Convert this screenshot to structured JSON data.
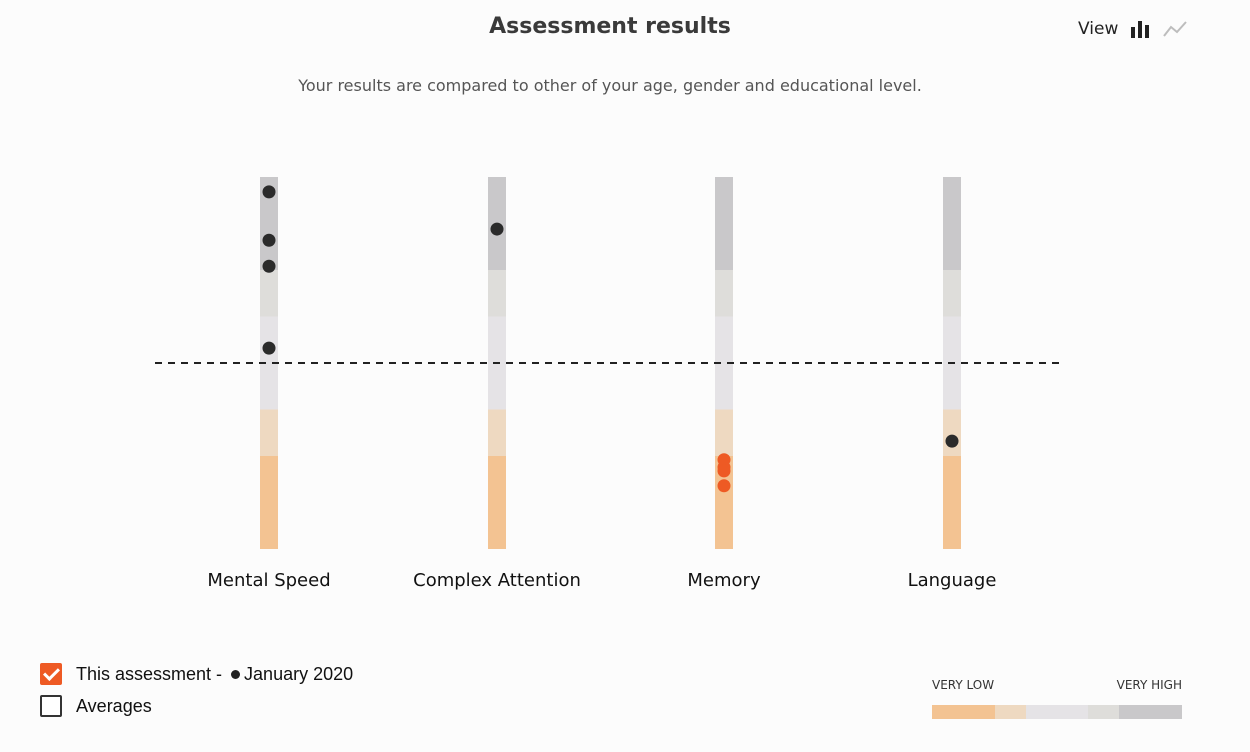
{
  "header": {
    "title": "Assessment results",
    "subtitle": "Your results are compared to other of your age, gender and educational level.",
    "view_label": "View",
    "view_bar_icon": "bar-chart-icon",
    "view_line_icon": "line-chart-icon"
  },
  "colors": {
    "very_low": "#f3c392",
    "low": "#eed9c1",
    "average": "#e5e3e6",
    "high": "#deddda",
    "very_high": "#c9c8ca",
    "point": "#2b2b2b",
    "point_highlight": "#ee5a24",
    "dashed_line": "#222222"
  },
  "chart_data": {
    "type": "scatter",
    "title": "Assessment results",
    "categories": [
      "Mental Speed",
      "Complex Attention",
      "Memory",
      "Language"
    ],
    "y_scale": "normative band: 0 = lowest, 100 = highest",
    "ylim": [
      0,
      100
    ],
    "bands": [
      {
        "name": "VERY LOW",
        "from": 0,
        "to": 25,
        "color": "#f3c392"
      },
      {
        "name": "LOW",
        "from": 25,
        "to": 37.5,
        "color": "#eed9c1"
      },
      {
        "name": "AVERAGE",
        "from": 37.5,
        "to": 62.5,
        "color": "#e5e3e6"
      },
      {
        "name": "HIGH",
        "from": 62.5,
        "to": 75,
        "color": "#deddda"
      },
      {
        "name": "VERY HIGH",
        "from": 75,
        "to": 100,
        "color": "#c9c8ca"
      }
    ],
    "reference_line": 50,
    "points": [
      {
        "category": "Mental Speed",
        "values": [
          96,
          83,
          76,
          54
        ],
        "highlight": false
      },
      {
        "category": "Complex Attention",
        "values": [
          86
        ],
        "highlight": false
      },
      {
        "category": "Memory",
        "values": [
          24,
          22,
          21,
          17
        ],
        "highlight": true
      },
      {
        "category": "Language",
        "values": [
          29
        ],
        "highlight": false
      }
    ]
  },
  "legend": {
    "this_assessment": {
      "label": "This assessment - ",
      "date": "January 2020",
      "checked": true
    },
    "averages": {
      "label": "Averages",
      "checked": false
    }
  },
  "scale": {
    "low_label": "VERY LOW",
    "high_label": "VERY HIGH",
    "segments": [
      {
        "color": "#f3c392",
        "weight": 63
      },
      {
        "color": "#eed9c1",
        "weight": 31
      },
      {
        "color": "#e5e3e6",
        "weight": 62
      },
      {
        "color": "#deddda",
        "weight": 31
      },
      {
        "color": "#c9c8ca",
        "weight": 63
      }
    ]
  }
}
